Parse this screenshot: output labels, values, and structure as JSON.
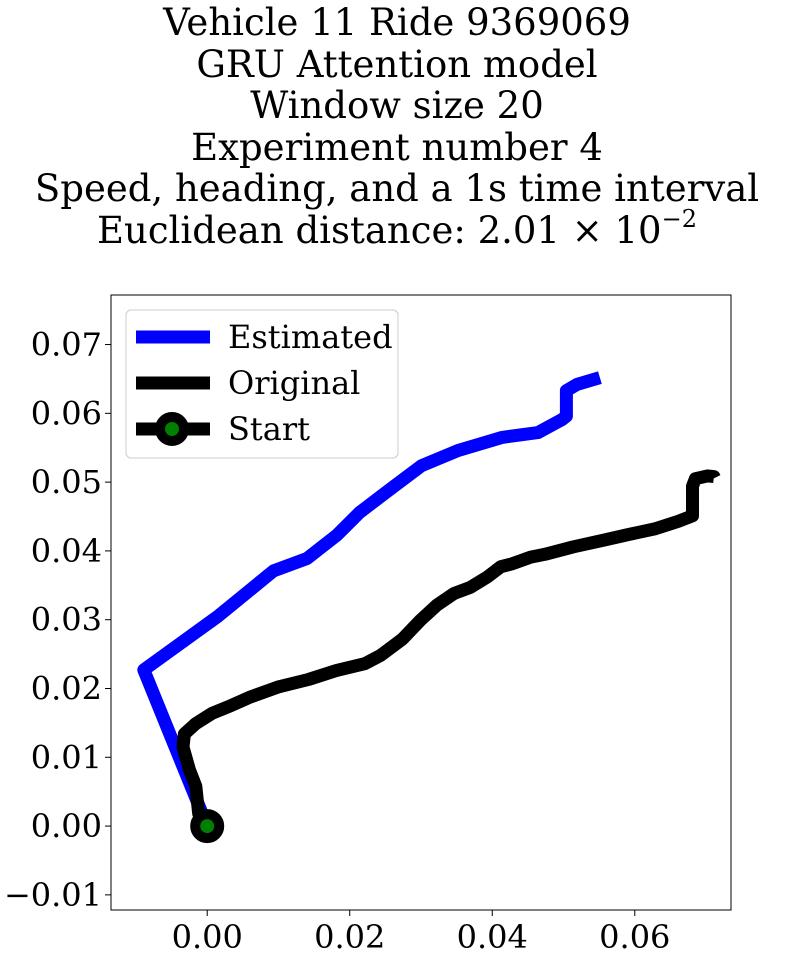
{
  "title_lines": [
    "Vehicle 11 Ride 9369069",
    "GRU Attention model",
    "Window size 20",
    "Experiment number 4",
    "Speed, heading, and a 1s time interval"
  ],
  "title_distance": {
    "prefix": "Euclidean distance: ",
    "mantissa": "2.01",
    "times": "×",
    "base": "10",
    "exponent": "−2"
  },
  "chart_data": {
    "type": "line",
    "title": "Vehicle 11 Ride 9369069 / GRU Attention model / Window size 20 / Experiment number 4 / Speed, heading, and a 1s time interval / Euclidean distance: 2.01×10^-2",
    "xlabel": "",
    "ylabel": "",
    "xlim": [
      -0.0135,
      0.0735
    ],
    "ylim": [
      -0.0122,
      0.0772
    ],
    "x_ticks": [
      0.0,
      0.02,
      0.04,
      0.06
    ],
    "x_tick_labels": [
      "0.00",
      "0.02",
      "0.04",
      "0.06"
    ],
    "y_ticks": [
      -0.01,
      0.0,
      0.01,
      0.02,
      0.03,
      0.04,
      0.05,
      0.06,
      0.07
    ],
    "y_tick_labels": [
      "−0.01",
      "0.00",
      "0.01",
      "0.02",
      "0.03",
      "0.04",
      "0.05",
      "0.06",
      "0.07"
    ],
    "grid": false,
    "legend_position": "top-left",
    "series": [
      {
        "name": "Estimated",
        "color": "#0000ff",
        "points": [
          [
            0.0,
            0.0
          ],
          [
            -0.0089,
            0.0227
          ],
          [
            0.0015,
            0.0305
          ],
          [
            0.0093,
            0.0371
          ],
          [
            0.014,
            0.0389
          ],
          [
            0.0182,
            0.0423
          ],
          [
            0.0214,
            0.0456
          ],
          [
            0.0261,
            0.0493
          ],
          [
            0.0301,
            0.0524
          ],
          [
            0.0352,
            0.0546
          ],
          [
            0.0414,
            0.0565
          ],
          [
            0.0464,
            0.0572
          ],
          [
            0.0498,
            0.0591
          ],
          [
            0.0504,
            0.0596
          ],
          [
            0.0504,
            0.0633
          ],
          [
            0.0519,
            0.0642
          ],
          [
            0.0551,
            0.0652
          ]
        ]
      },
      {
        "name": "Original",
        "color": "#000000",
        "points": [
          [
            0.0,
            0.0
          ],
          [
            -0.0012,
            0.0018
          ],
          [
            -0.0016,
            0.0058
          ],
          [
            -0.0025,
            0.0082
          ],
          [
            -0.0034,
            0.0115
          ],
          [
            -0.0032,
            0.0134
          ],
          [
            -0.0016,
            0.0149
          ],
          [
            0.0007,
            0.0164
          ],
          [
            0.0033,
            0.0175
          ],
          [
            0.0059,
            0.0187
          ],
          [
            0.0099,
            0.0202
          ],
          [
            0.0142,
            0.0213
          ],
          [
            0.0181,
            0.0226
          ],
          [
            0.0221,
            0.0236
          ],
          [
            0.0243,
            0.0248
          ],
          [
            0.0274,
            0.0272
          ],
          [
            0.0299,
            0.0299
          ],
          [
            0.0322,
            0.0321
          ],
          [
            0.0346,
            0.0338
          ],
          [
            0.0369,
            0.0347
          ],
          [
            0.0393,
            0.0362
          ],
          [
            0.0412,
            0.0377
          ],
          [
            0.0427,
            0.0381
          ],
          [
            0.0454,
            0.0391
          ],
          [
            0.0474,
            0.0395
          ],
          [
            0.0514,
            0.0406
          ],
          [
            0.0558,
            0.0416
          ],
          [
            0.0592,
            0.0424
          ],
          [
            0.0628,
            0.0432
          ],
          [
            0.0661,
            0.0443
          ],
          [
            0.0681,
            0.0451
          ],
          [
            0.0681,
            0.0466
          ],
          [
            0.0681,
            0.0494
          ],
          [
            0.0685,
            0.0505
          ],
          [
            0.0702,
            0.0509
          ],
          [
            0.0711,
            0.0508
          ],
          [
            0.0712,
            0.0506
          ]
        ]
      }
    ],
    "start_marker": {
      "name": "Start",
      "x": 0.0,
      "y": 0.0,
      "face_color": "#008000",
      "edge_color": "#000000"
    }
  }
}
